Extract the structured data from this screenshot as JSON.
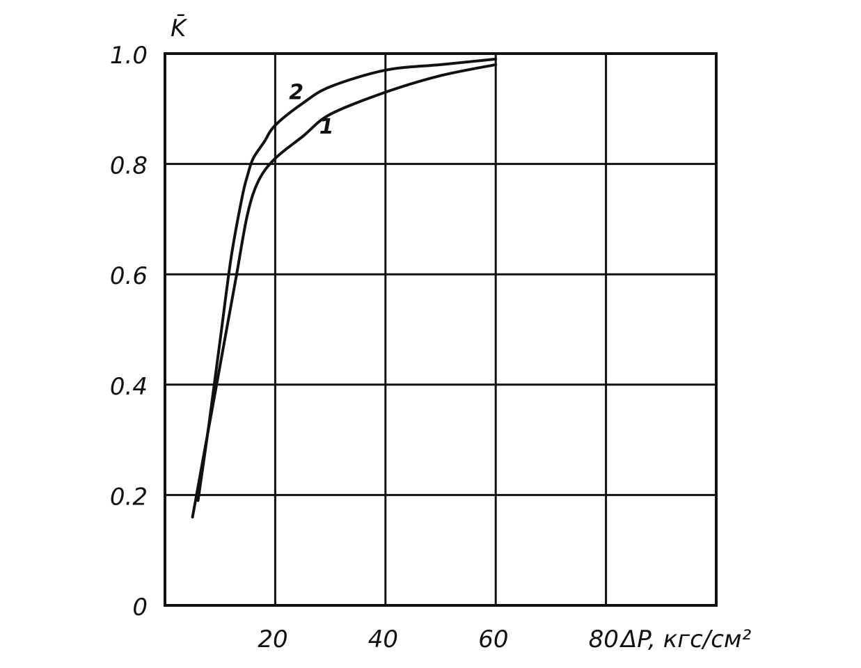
{
  "chart_data": {
    "type": "line",
    "title": "",
    "xlabel": "ΔP, кгс/см²",
    "ylabel": "K̄",
    "xlim": [
      0,
      100
    ],
    "ylim": [
      0,
      1.0
    ],
    "grid": true,
    "x_ticks": [
      {
        "value": 20,
        "label": "20"
      },
      {
        "value": 40,
        "label": "40"
      },
      {
        "value": 60,
        "label": "60"
      },
      {
        "value": 80,
        "label": "80"
      }
    ],
    "y_ticks": [
      {
        "value": 0,
        "label": "0"
      },
      {
        "value": 0.2,
        "label": "0.2"
      },
      {
        "value": 0.4,
        "label": "0.4"
      },
      {
        "value": 0.6,
        "label": "0.6"
      },
      {
        "value": 0.8,
        "label": "0.8"
      },
      {
        "value": 1.0,
        "label": "1.0"
      }
    ],
    "series": [
      {
        "name": "1",
        "x": [
          5,
          7,
          9,
          11,
          13,
          15,
          17,
          20,
          25,
          30,
          40,
          50,
          60
        ],
        "y": [
          0.16,
          0.27,
          0.38,
          0.49,
          0.6,
          0.71,
          0.77,
          0.81,
          0.85,
          0.89,
          0.93,
          0.96,
          0.98
        ]
      },
      {
        "name": "2",
        "x": [
          6,
          8,
          10,
          12,
          14,
          15,
          16,
          18,
          20,
          25,
          30,
          40,
          50,
          60
        ],
        "y": [
          0.19,
          0.33,
          0.48,
          0.63,
          0.74,
          0.78,
          0.81,
          0.84,
          0.87,
          0.91,
          0.94,
          0.97,
          0.98,
          0.99
        ]
      }
    ]
  }
}
